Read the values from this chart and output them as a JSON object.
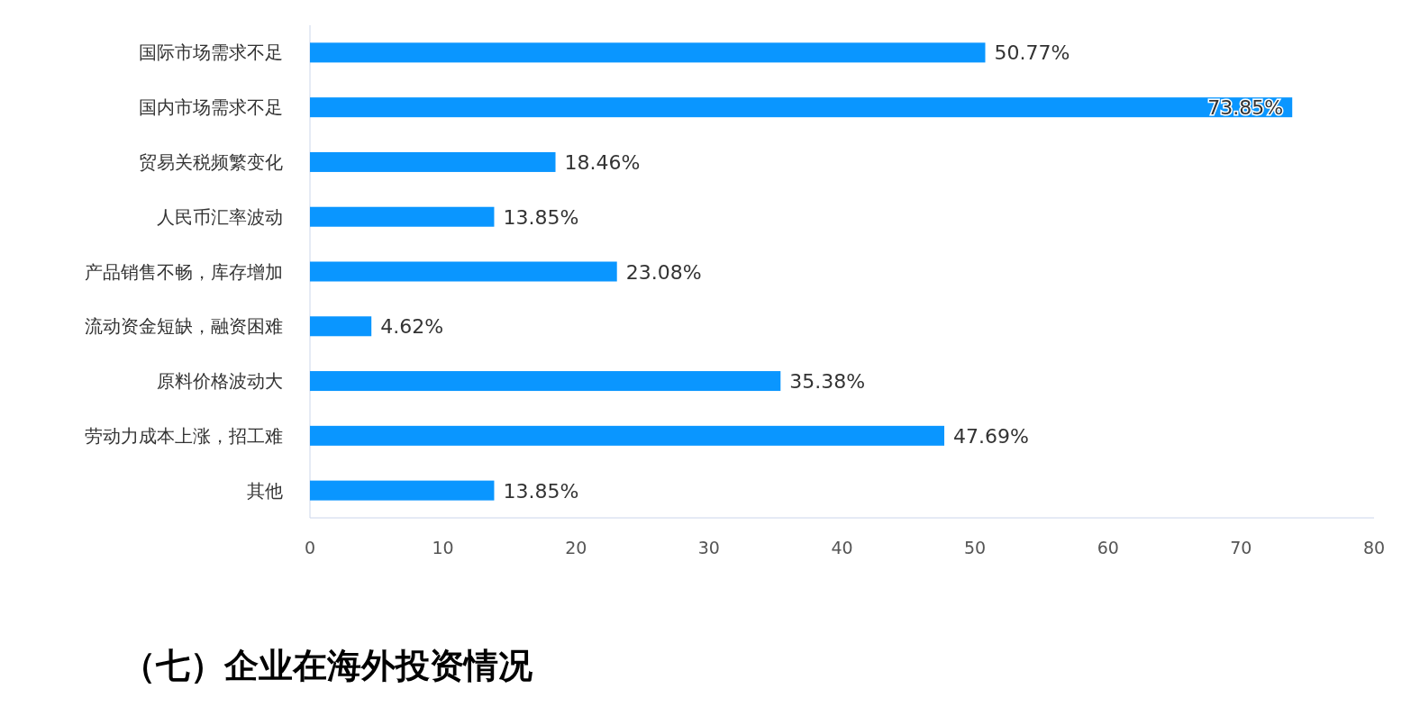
{
  "chart_data": {
    "type": "bar",
    "orientation": "horizontal",
    "categories": [
      "国际市场需求不足",
      "国内市场需求不足",
      "贸易关税频繁变化",
      "人民币汇率波动",
      "产品销售不畅，库存增加",
      "流动资金短缺，融资困难",
      "原料价格波动大",
      "劳动力成本上涨，招工难",
      "其他"
    ],
    "values": [
      50.77,
      73.85,
      18.46,
      13.85,
      23.08,
      4.62,
      35.38,
      47.69,
      13.85
    ],
    "value_labels": [
      "50.77%",
      "73.85%",
      "18.46%",
      "13.85%",
      "23.08%",
      "4.62%",
      "35.38%",
      "47.69%",
      "13.85%"
    ],
    "color": "#0a96ff",
    "xlim": [
      0,
      80
    ],
    "xticks": [
      0,
      10,
      20,
      30,
      40,
      50,
      60,
      70,
      80
    ],
    "grid": false,
    "annotations": [
      "（七）企业在海外投资情况"
    ]
  }
}
